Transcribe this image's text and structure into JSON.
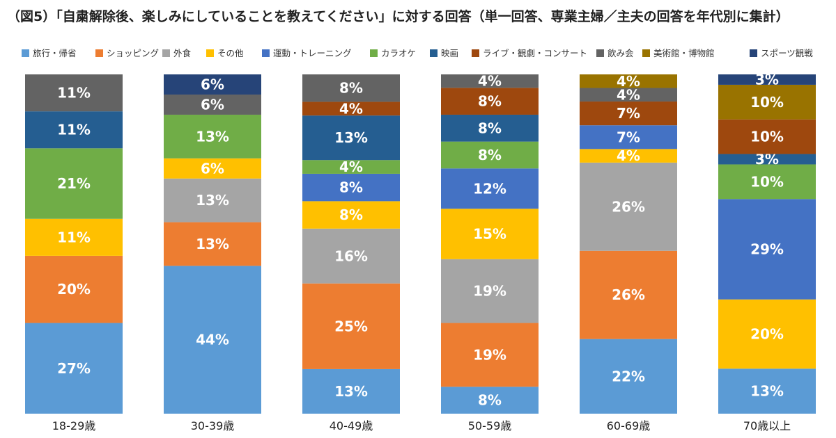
{
  "chart_data": {
    "type": "bar",
    "stacked": true,
    "percent_stacked": true,
    "title": "（図5）「自粛解除後、楽しみにしていることを教えてください」に対する回答（単一回答、専業主婦／主夫の回答を年代別に集計）",
    "legend_position": "top",
    "grid": false,
    "ylim": [
      0,
      100
    ],
    "categories": [
      "18-29歳",
      "30-39歳",
      "40-49歳",
      "50-59歳",
      "60-69歳",
      "70歳以上"
    ],
    "series": [
      {
        "name": "旅行・帰省",
        "color": "#5b9bd5",
        "values": [
          27,
          44,
          13,
          8,
          22,
          13
        ]
      },
      {
        "name": "ショッピング",
        "color": "#ed7d31",
        "values": [
          20,
          13,
          25,
          19,
          26,
          0
        ]
      },
      {
        "name": "外食",
        "color": "#a5a5a5",
        "values": [
          0,
          13,
          16,
          19,
          26,
          0
        ]
      },
      {
        "name": "その他",
        "color": "#ffc000",
        "values": [
          11,
          6,
          8,
          15,
          4,
          20
        ]
      },
      {
        "name": "運動・トレーニング",
        "color": "#4472c4",
        "values": [
          0,
          0,
          8,
          12,
          7,
          29
        ]
      },
      {
        "name": "カラオケ",
        "color": "#70ad47",
        "values": [
          21,
          13,
          4,
          8,
          0,
          10
        ]
      },
      {
        "name": "映画",
        "color": "#255e91",
        "values": [
          11,
          0,
          13,
          8,
          0,
          3
        ]
      },
      {
        "name": "ライブ・観劇・コンサート",
        "color": "#9e480e",
        "values": [
          0,
          0,
          4,
          8,
          7,
          10
        ]
      },
      {
        "name": "飲み会",
        "color": "#636363",
        "values": [
          11,
          6,
          8,
          4,
          4,
          0
        ]
      },
      {
        "name": "美術館・博物館",
        "color": "#997300",
        "values": [
          0,
          0,
          0,
          0,
          4,
          10
        ]
      },
      {
        "name": "スポーツ観戦",
        "color": "#264478",
        "values": [
          0,
          6,
          0,
          0,
          0,
          3
        ]
      }
    ],
    "value_suffix": "%"
  }
}
